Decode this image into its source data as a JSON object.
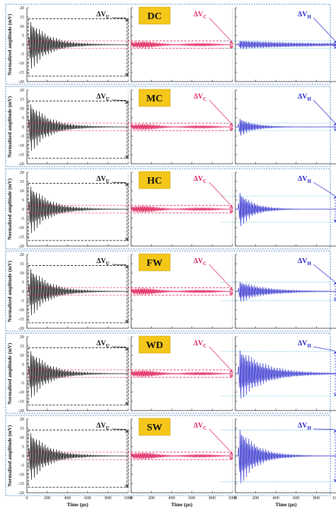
{
  "chart_data": {
    "type": "line",
    "panels": [
      {
        "label": "DC",
        "upper": 14,
        "lower": -17,
        "amp": [
          12,
          2,
          2
        ],
        "decay": [
          0.0055,
          0.0014,
          0.0014
        ],
        "cLevel": 2,
        "hLevel": 2
      },
      {
        "label": "MC",
        "upper": 14,
        "lower": -17,
        "amp": [
          12,
          1.8,
          4.5
        ],
        "decay": [
          0.0055,
          0.0014,
          0.007
        ],
        "cLevel": 2,
        "hLevel": 2
      },
      {
        "label": "HC",
        "upper": 14,
        "lower": -17,
        "amp": [
          12,
          2,
          9
        ],
        "decay": [
          0.0055,
          0.0014,
          0.0075
        ],
        "cLevel": 2,
        "hLevel": 7
      },
      {
        "label": "FW",
        "upper": 14,
        "lower": -17,
        "amp": [
          12,
          2,
          5
        ],
        "decay": [
          0.0055,
          0.0014,
          0.004
        ],
        "cLevel": 2,
        "hLevel": 5
      },
      {
        "label": "WD",
        "upper": 14,
        "lower": -17,
        "amp": [
          12,
          2,
          12
        ],
        "decay": [
          0.0055,
          0.0014,
          0.004
        ],
        "cLevel": 2,
        "hLevel": 12
      },
      {
        "label": "SW",
        "upper": 14,
        "lower": -17,
        "amp": [
          12,
          2,
          14
        ],
        "decay": [
          0.0055,
          0.0014,
          0.006
        ],
        "cLevel": 2,
        "hLevel": 14
      }
    ],
    "ylabel": "Normalized amplitude (mV)",
    "xlabel": "Time (µs)",
    "ylim": [
      -20,
      20
    ],
    "yticks": [
      -20,
      -15,
      -10,
      -5,
      0,
      5,
      10,
      15,
      20
    ],
    "xlim": [
      0,
      1000
    ],
    "xticks": [
      0,
      200,
      400,
      600,
      800,
      1000
    ],
    "series": [
      {
        "name": "U",
        "color": "#111111"
      },
      {
        "name": "C",
        "color": "#e0205a"
      },
      {
        "name": "H",
        "color": "#2424cc"
      }
    ],
    "delta_labels": [
      "ΔV",
      "ΔV",
      "ΔV"
    ],
    "delta_subs": [
      "U",
      "C",
      "H"
    ],
    "box_color": "#2a6fb0",
    "grid_color": "#3fb7d6"
  }
}
